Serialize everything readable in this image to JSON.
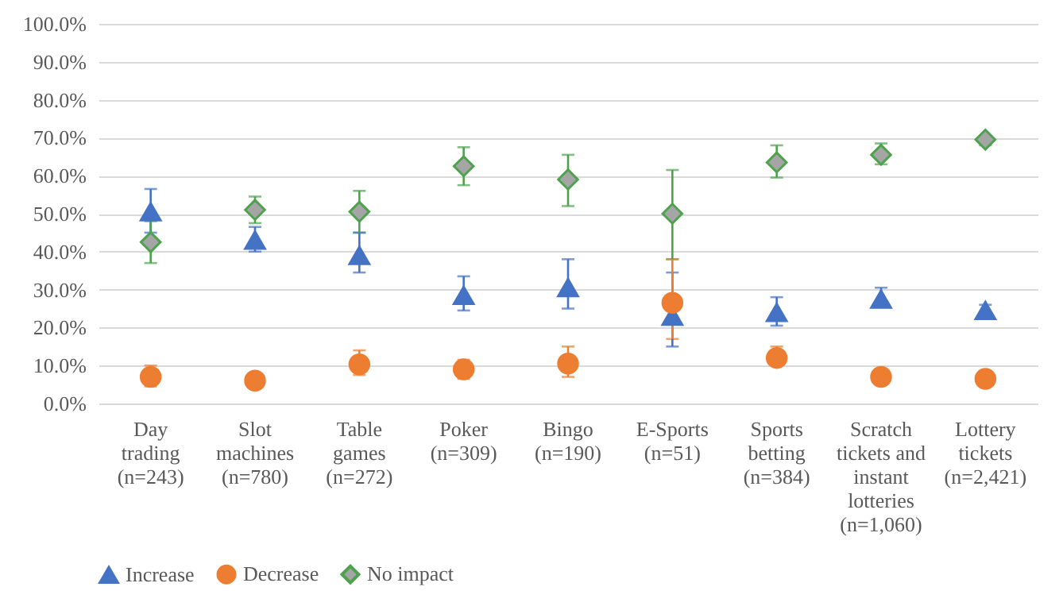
{
  "chart_data": {
    "type": "scatter",
    "categories": [
      "Day trading (n=243)",
      "Slot machines (n=780)",
      "Table games (n=272)",
      "Poker (n=309)",
      "Bingo (n=190)",
      "E-Sports (n=51)",
      "Sports betting (n=384)",
      "Scratch tickets and instant lotteries (n=1,060)",
      "Lottery tickets (n=2,421)"
    ],
    "series": [
      {
        "name": "Increase",
        "color": "#4472c4",
        "marker": "triangle",
        "values": [
          50.5,
          43,
          39,
          28.5,
          30.5,
          23,
          24,
          27.5,
          24.5
        ],
        "errors": [
          [
            45,
            56.5
          ],
          [
            40,
            46.5
          ],
          [
            34.5,
            45
          ],
          [
            24.5,
            33.5
          ],
          [
            25,
            38
          ],
          [
            15,
            34.5
          ],
          [
            20.5,
            28
          ],
          [
            25.5,
            30.5
          ],
          [
            23,
            26
          ]
        ]
      },
      {
        "name": "Decrease",
        "color": "#ed7d31",
        "marker": "circle",
        "values": [
          7,
          6,
          10.3,
          9,
          10.5,
          26.5,
          12,
          7,
          6.5
        ],
        "errors": [
          [
            4.5,
            10
          ],
          null,
          [
            7.5,
            14
          ],
          [
            6.5,
            11.5
          ],
          [
            7,
            15
          ],
          [
            17,
            38
          ],
          [
            10,
            15
          ],
          null,
          null
        ]
      },
      {
        "name": "No impact",
        "color": "#4ea24e",
        "marker": "diamond",
        "values": [
          42.5,
          51,
          50.5,
          62.5,
          59,
          50,
          63.5,
          65.5,
          69.5
        ],
        "errors": [
          [
            37,
            48
          ],
          [
            47.5,
            54.5
          ],
          [
            45,
            56
          ],
          [
            57.5,
            67.5
          ],
          [
            52,
            65.5
          ],
          [
            38,
            61.5
          ],
          [
            59.5,
            68
          ],
          [
            63,
            68.5
          ],
          [
            68,
            70.5
          ]
        ]
      }
    ],
    "ylim": [
      0,
      100
    ],
    "yticks": [
      {
        "value": 0,
        "label": "0.0%"
      },
      {
        "value": 10,
        "label": "10.0%"
      },
      {
        "value": 20,
        "label": "20.0%"
      },
      {
        "value": 30,
        "label": "30.0%"
      },
      {
        "value": 40,
        "label": "40.0%"
      },
      {
        "value": 50,
        "label": "50.0%"
      },
      {
        "value": 60,
        "label": "60.0%"
      },
      {
        "value": 70,
        "label": "70.0%"
      },
      {
        "value": 80,
        "label": "80.0%"
      },
      {
        "value": 90,
        "label": "90.0%"
      },
      {
        "value": 100,
        "label": "100.0%"
      }
    ],
    "grid": "y",
    "legend": "bottom"
  }
}
